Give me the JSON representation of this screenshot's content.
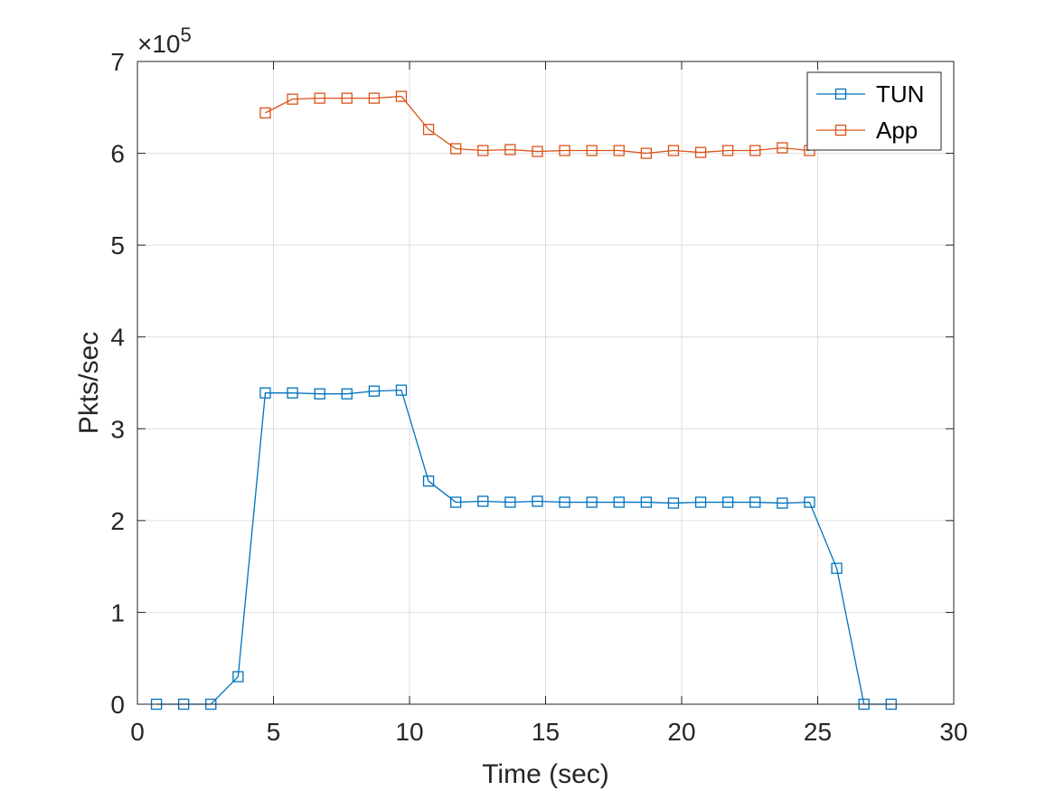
{
  "chart_data": {
    "type": "line",
    "xlabel": "Time (sec)",
    "ylabel": "Pkts/sec",
    "xlim": [
      0,
      30
    ],
    "ylim": [
      0,
      700000
    ],
    "xticks": [
      0,
      5,
      10,
      15,
      20,
      25,
      30
    ],
    "yticks": [
      0,
      1,
      2,
      3,
      4,
      5,
      6,
      7
    ],
    "ytick_scale": 100000,
    "multiplier_label": {
      "prefix": "×10",
      "exponent": "5"
    },
    "grid": true,
    "legend_position": "top-right",
    "marker": "square",
    "series": [
      {
        "name": "TUN",
        "color": "#0072BD",
        "x": [
          0.7,
          1.7,
          2.7,
          3.7,
          4.7,
          5.7,
          6.7,
          7.7,
          8.7,
          9.7,
          10.7,
          11.7,
          12.7,
          13.7,
          14.7,
          15.7,
          16.7,
          17.7,
          18.7,
          19.7,
          20.7,
          21.7,
          22.7,
          23.7,
          24.7,
          25.7,
          26.7,
          27.7
        ],
        "values": [
          0,
          0,
          0,
          30000,
          339000,
          339000,
          338000,
          338000,
          341000,
          342000,
          243000,
          220000,
          221000,
          220000,
          221000,
          220000,
          220000,
          220000,
          220000,
          219000,
          220000,
          220000,
          220000,
          219000,
          220000,
          148000,
          0,
          0
        ]
      },
      {
        "name": "App",
        "color": "#D95319",
        "x": [
          4.7,
          5.7,
          6.7,
          7.7,
          8.7,
          9.7,
          10.7,
          11.7,
          12.7,
          13.7,
          14.7,
          15.7,
          16.7,
          17.7,
          18.7,
          19.7,
          20.7,
          21.7,
          22.7,
          23.7,
          24.7
        ],
        "values": [
          644000,
          659000,
          660000,
          660000,
          660000,
          662000,
          626000,
          605000,
          603000,
          604000,
          602000,
          603000,
          603000,
          603000,
          600000,
          603000,
          601000,
          603000,
          603000,
          606000,
          603000
        ]
      }
    ]
  }
}
